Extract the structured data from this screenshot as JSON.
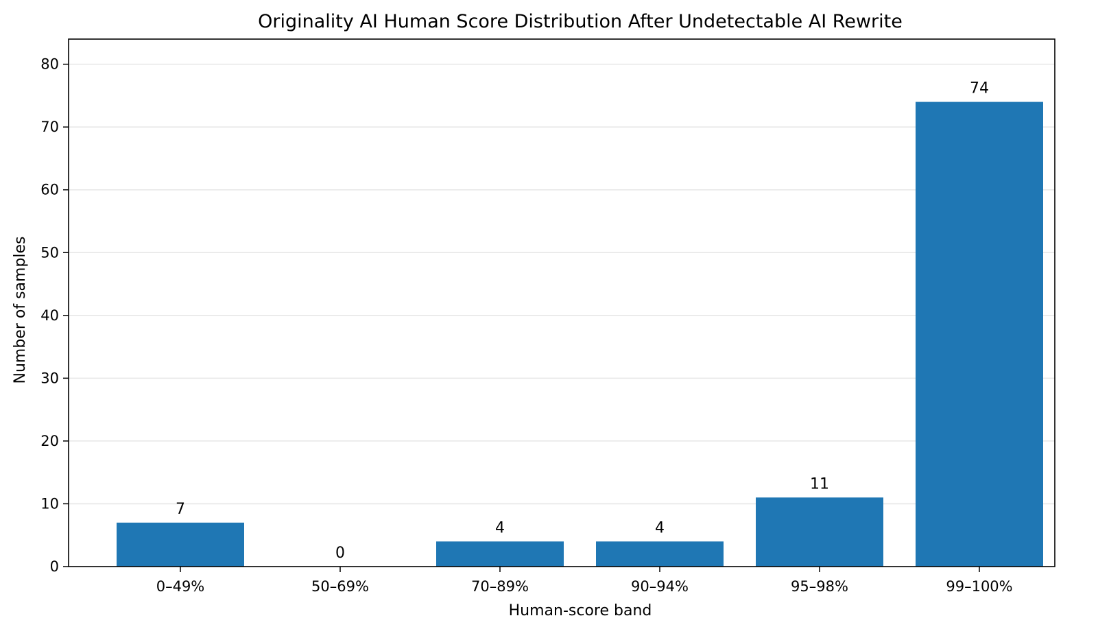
{
  "chart_data": {
    "type": "bar",
    "title": "Originality AI Human Score Distribution After Undetectable AI Rewrite",
    "xlabel": "Human-score band",
    "ylabel": "Number of samples",
    "categories": [
      "0–49%",
      "50–69%",
      "70–89%",
      "90–94%",
      "95–98%",
      "99–100%"
    ],
    "values": [
      7,
      0,
      4,
      4,
      11,
      74
    ],
    "data_labels": [
      "7",
      "0",
      "4",
      "4",
      "11",
      "74"
    ],
    "ylim": [
      0,
      84
    ],
    "yticks": [
      0,
      10,
      20,
      30,
      40,
      50,
      60,
      70,
      80
    ],
    "ytick_labels": [
      "0",
      "10",
      "20",
      "30",
      "40",
      "50",
      "60",
      "70",
      "80"
    ],
    "grid": "y",
    "bar_color": "#1f77b4",
    "grid_color": "#e6e6e6"
  }
}
